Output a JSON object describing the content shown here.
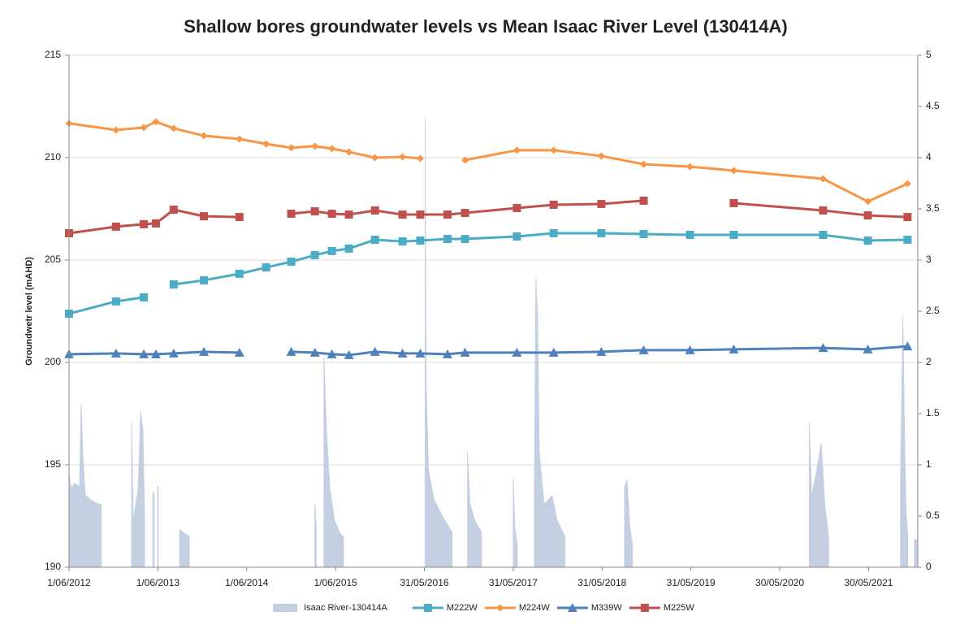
{
  "chart_data": {
    "type": "line",
    "title": "Shallow bores groundwater levels vs Mean Isaac River Level (130414A)",
    "y_label": "Groundwetr level (mAHD)",
    "x": [
      "1/06/2012",
      "11/12/2012",
      "4/04/2013",
      "24/05/2013",
      "5/08/2013",
      "7/12/2013",
      "2/05/2014",
      "20/08/2014",
      "1/12/2014",
      "8/03/2015",
      "17/05/2015",
      "26/07/2015",
      "10/11/2015",
      "2/03/2016",
      "14/05/2016",
      "3/09/2016",
      "14/11/2016",
      "15/06/2017",
      "13/11/2017",
      "28/05/2018",
      "18/11/2018",
      "27/05/2019",
      "23/11/2019",
      "24/11/2020",
      "27/05/2021",
      "6/11/2021"
    ],
    "xlim": [
      "1/06/2012",
      "18/12/2021"
    ],
    "xticks": [
      "1/06/2012",
      "1/06/2013",
      "1/06/2014",
      "1/06/2015",
      "31/05/2016",
      "31/05/2017",
      "31/05/2018",
      "31/05/2019",
      "30/05/2020",
      "30/05/2021"
    ],
    "ylim": [
      190,
      215
    ],
    "yticks": [
      190,
      195,
      200,
      205,
      210,
      215
    ],
    "y2lim": [
      0,
      5
    ],
    "y2ticks": [
      0,
      0.5,
      1,
      1.5,
      2,
      2.5,
      3,
      3.5,
      4,
      4.5,
      5
    ],
    "grid": true,
    "legend": "bottom",
    "series": [
      {
        "name": "Isaac River-130414A",
        "type": "area",
        "axis": "y2",
        "color": "#c5cfe2",
        "x": [
          "1/06/2012",
          "8/06/2012",
          "24/06/2012",
          "14/07/2012",
          "21/07/2012",
          "28/07/2012",
          "7/08/2012",
          "9/09/2012",
          "12/10/2012",
          "13/10/2012",
          "13/02/2013",
          "20/02/2013",
          "12/03/2013",
          "22/03/2013",
          "1/04/2013",
          "7/04/2013",
          "8/04/2013",
          "11/05/2013",
          "17/05/2013",
          "18/05/2013",
          "31/05/2013",
          "3/06/2013",
          "4/06/2013",
          "29/08/2013",
          "14/09/2013",
          "8/10/2013",
          "9/10/2013",
          "8/03/2015",
          "14/03/2015",
          "15/03/2015",
          "14/04/2015",
          "24/04/2015",
          "8/05/2015",
          "28/05/2015",
          "17/06/2015",
          "4/07/2015",
          "5/07/2015",
          "3/06/2016",
          "7/06/2016",
          "17/06/2016",
          "10/07/2016",
          "13/08/2016",
          "22/09/2016",
          "23/09/2016",
          "24/11/2016",
          "4/12/2016",
          "24/12/2016",
          "21/01/2017",
          "22/01/2017",
          "31/05/2017",
          "7/06/2017",
          "17/06/2017",
          "18/06/2017",
          "26/08/2017",
          "1/09/2017",
          "8/09/2017",
          "15/09/2017",
          "5/10/2017",
          "7/11/2017",
          "27/11/2017",
          "30/12/2017",
          "31/12/2017",
          "31/08/2018",
          "10/09/2018",
          "23/09/2018",
          "3/10/2018",
          "4/10/2018",
          "28/09/2020",
          "8/10/2020",
          "28/10/2020",
          "17/11/2020",
          "1/12/2020",
          "17/12/2020",
          "18/12/2020",
          "8/10/2021",
          "18/10/2021",
          "25/10/2021",
          "31/10/2021",
          "7/11/2021",
          "8/11/2021",
          "4/12/2021",
          "14/12/2021"
        ],
        "values": [
          0.94,
          0.78,
          0.82,
          0.79,
          1.6,
          1.1,
          0.7,
          0.64,
          0.61,
          null,
          1.41,
          0.46,
          0.78,
          1.53,
          1.33,
          0.54,
          null,
          0.74,
          0.7,
          null,
          0.79,
          0.79,
          null,
          0.37,
          0.34,
          0.3,
          null,
          0.62,
          0.38,
          null,
          2.05,
          1.4,
          0.78,
          0.46,
          0.34,
          0.29,
          null,
          4.39,
          1.81,
          0.94,
          0.66,
          0.5,
          0.34,
          null,
          1.13,
          0.62,
          0.46,
          0.34,
          null,
          0.87,
          0.38,
          0.22,
          null,
          0.79,
          2.82,
          2.48,
          1.13,
          0.62,
          0.7,
          0.46,
          0.3,
          null,
          0.78,
          0.86,
          0.38,
          0.22,
          null,
          1.41,
          0.7,
          0.94,
          1.21,
          0.62,
          0.3,
          null,
          0.86,
          2.46,
          1.25,
          0.54,
          0.3,
          null,
          0.27,
          0.27
        ]
      },
      {
        "name": "M222W",
        "color": "#4bacc6",
        "marker": "square",
        "values": [
          202.38,
          202.98,
          203.18,
          null,
          203.81,
          204.01,
          204.33,
          204.64,
          204.92,
          205.24,
          205.44,
          205.56,
          205.99,
          205.91,
          205.95,
          206.03,
          206.03,
          206.15,
          206.31,
          206.31,
          206.27,
          206.23,
          206.23,
          206.23,
          205.95,
          205.99
        ]
      },
      {
        "name": "M224W",
        "color": "#f79646",
        "marker": "diamond",
        "values": [
          211.67,
          211.35,
          211.47,
          211.75,
          211.43,
          211.07,
          210.91,
          210.67,
          210.48,
          210.56,
          210.44,
          210.28,
          210.0,
          210.04,
          209.96,
          null,
          209.88,
          210.36,
          210.36,
          210.08,
          209.68,
          209.56,
          209.37,
          208.97,
          207.86,
          208.73
        ]
      },
      {
        "name": "M339W",
        "color": "#4f81bd",
        "marker": "triangle",
        "values": [
          200.4,
          200.44,
          200.4,
          200.4,
          200.44,
          200.52,
          200.48,
          null,
          200.52,
          200.48,
          200.4,
          200.36,
          200.52,
          200.44,
          200.44,
          200.4,
          200.48,
          200.48,
          200.48,
          200.52,
          200.6,
          200.6,
          200.64,
          200.71,
          200.64,
          200.79
        ]
      },
      {
        "name": "M225W",
        "color": "#c0504d",
        "marker": "square",
        "values": [
          206.31,
          206.63,
          206.75,
          206.79,
          207.46,
          207.14,
          207.1,
          null,
          207.26,
          207.38,
          207.26,
          207.22,
          207.42,
          207.22,
          207.22,
          207.22,
          207.3,
          207.54,
          207.7,
          207.74,
          207.9,
          null,
          207.78,
          207.42,
          207.18,
          207.1
        ]
      }
    ]
  }
}
